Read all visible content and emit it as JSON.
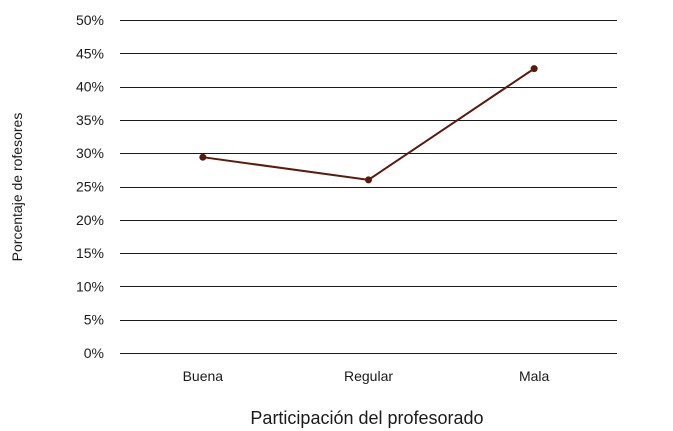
{
  "chart_data": {
    "type": "line",
    "categories": [
      "Buena",
      "Regular",
      "Mala"
    ],
    "series": [
      {
        "values": [
          29.4,
          26.0,
          42.7
        ],
        "color": "#5a1a0c"
      }
    ],
    "xlabel": "Participación del profesorado",
    "ylabel": "Porcentaje de rofesores",
    "ylim": [
      0,
      50
    ],
    "yticks": [
      0,
      5,
      10,
      15,
      20,
      25,
      30,
      35,
      40,
      45,
      50
    ],
    "ytick_labels": [
      "0%",
      "5%",
      "10%",
      "15%",
      "20%",
      "25%",
      "30%",
      "35%",
      "40%",
      "45%",
      "50%"
    ],
    "grid": true,
    "legend": "none"
  }
}
